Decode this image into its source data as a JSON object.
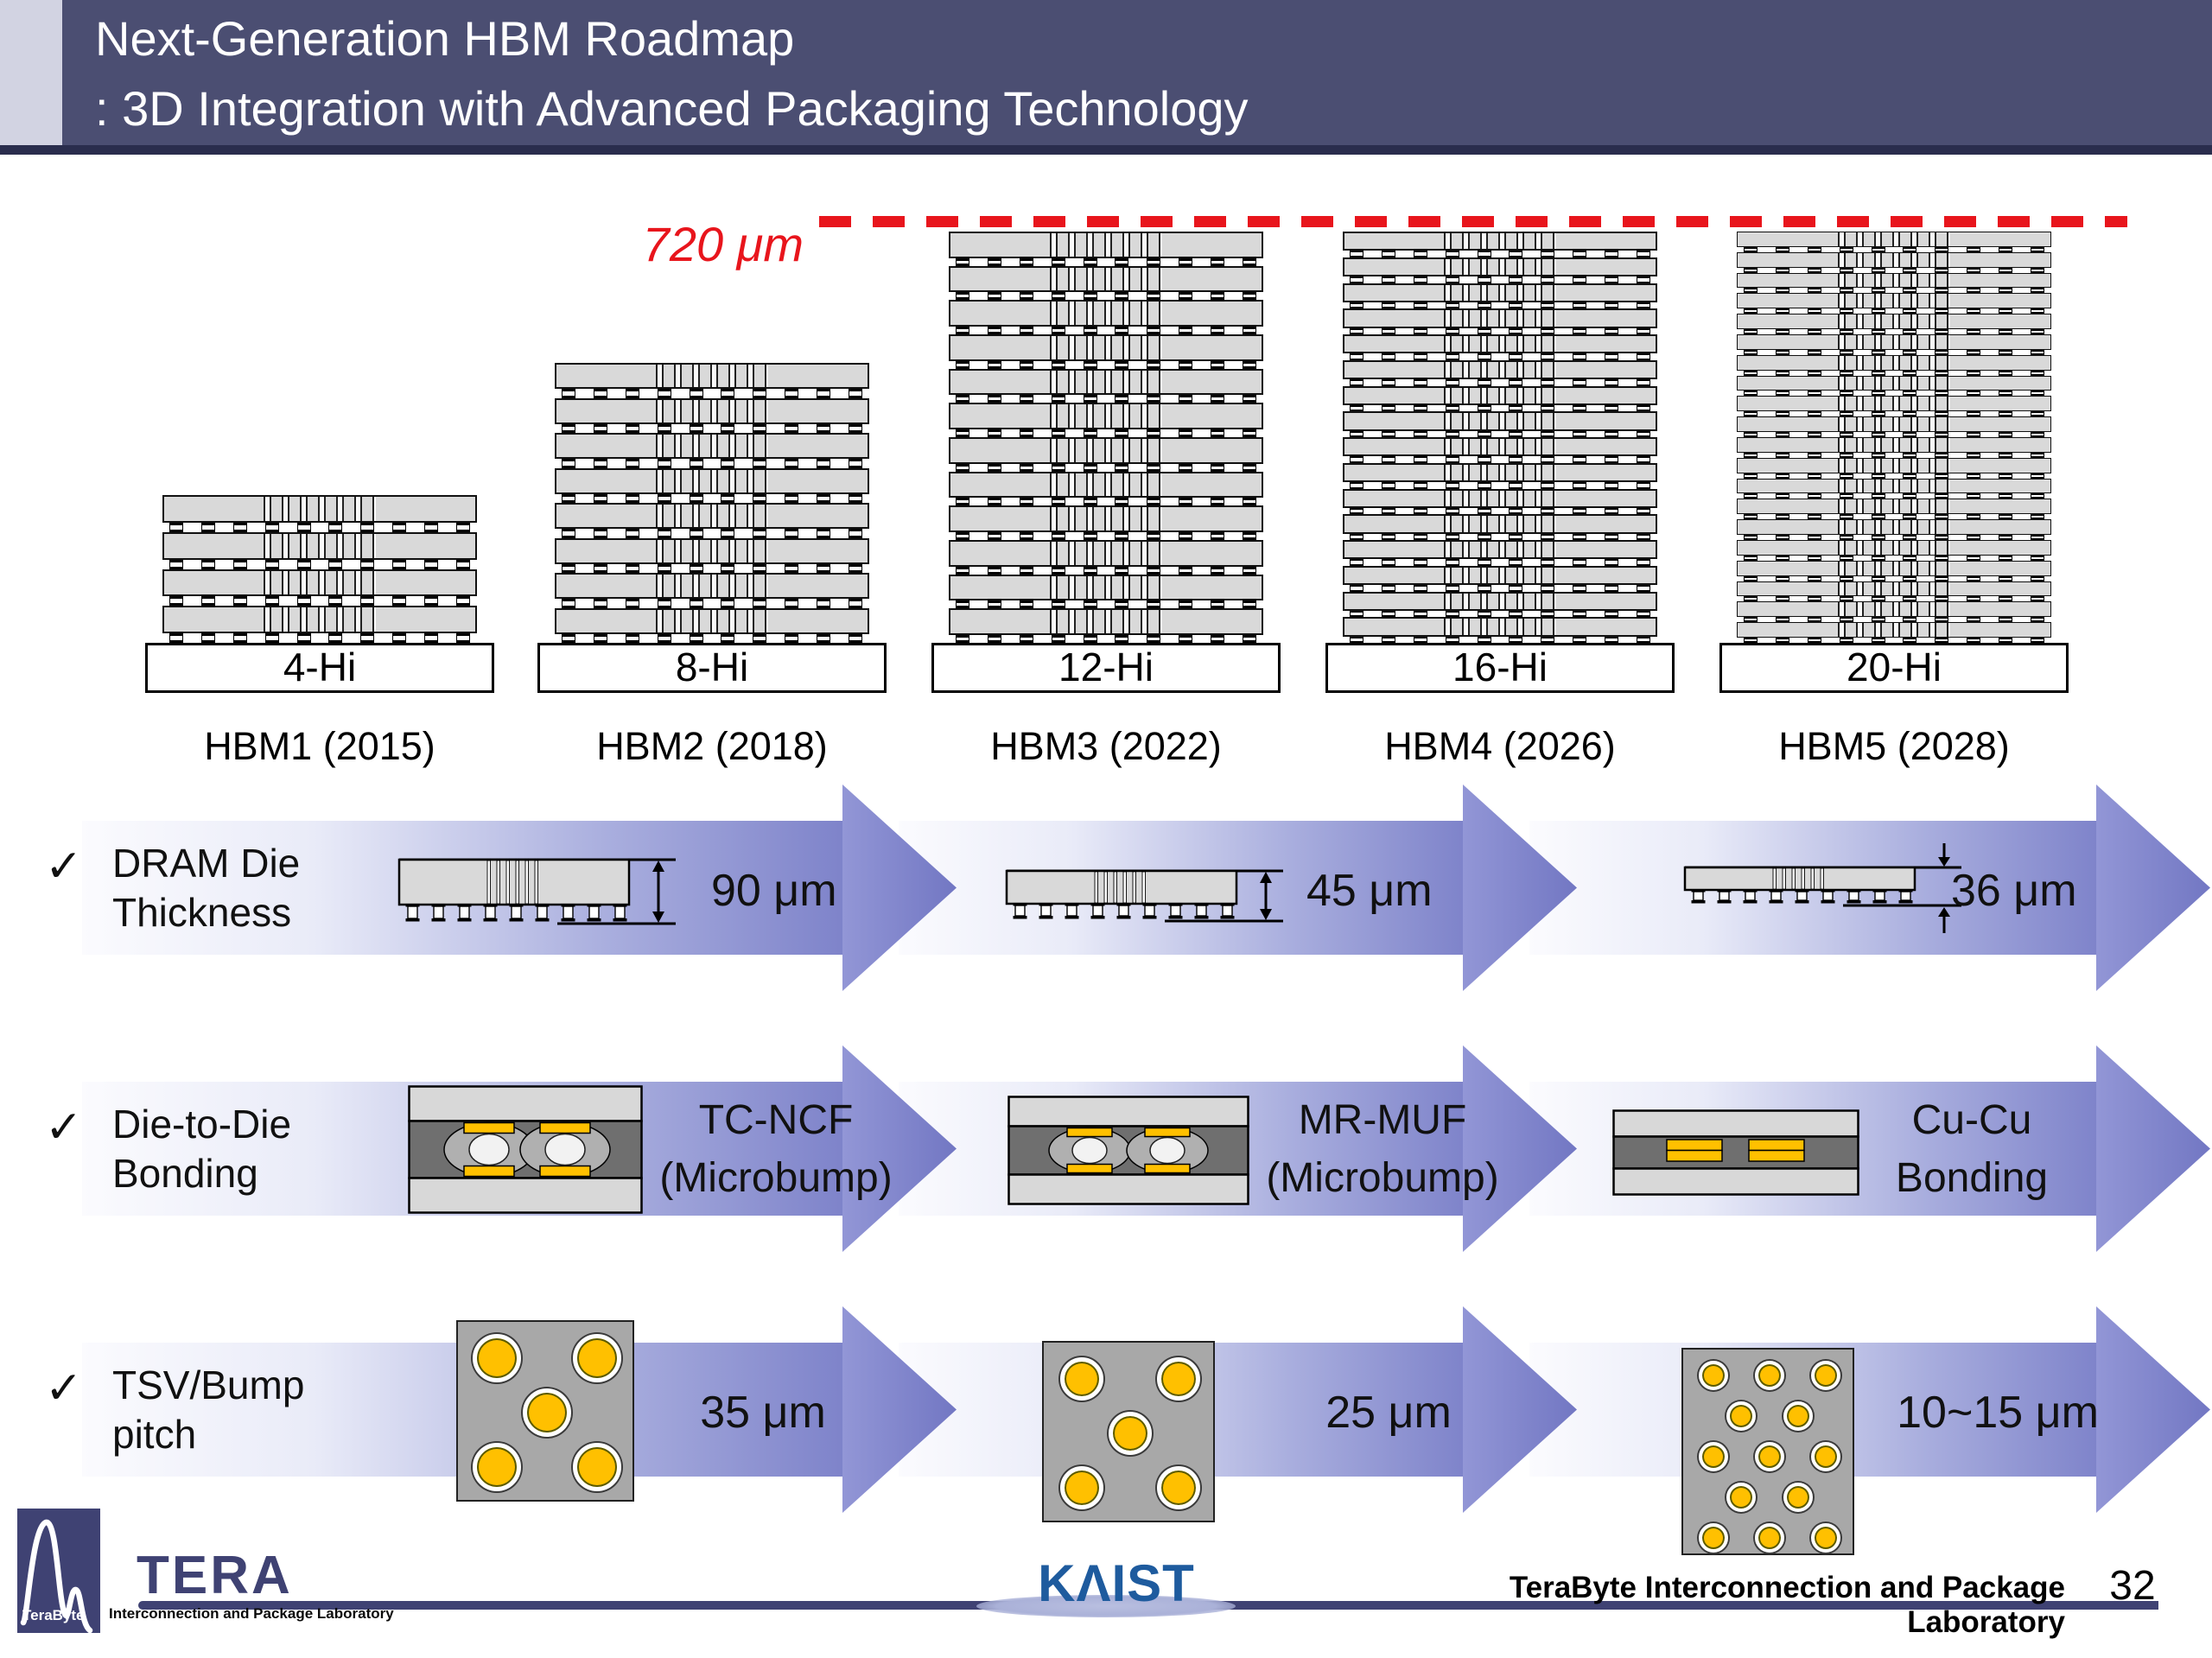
{
  "title": {
    "line1": "Next-Generation HBM Roadmap",
    "line2": ": 3D Integration with Advanced Packaging Technology"
  },
  "roadmap": {
    "height_limit_label": "720 μm",
    "stacks": [
      {
        "hi": "4-Hi",
        "gen": "HBM1 (2015)",
        "dies": 4
      },
      {
        "hi": "8-Hi",
        "gen": "HBM2 (2018)",
        "dies": 8
      },
      {
        "hi": "12-Hi",
        "gen": "HBM3 (2022)",
        "dies": 12
      },
      {
        "hi": "16-Hi",
        "gen": "HBM4 (2026)",
        "dies": 16
      },
      {
        "hi": "20-Hi",
        "gen": "HBM5 (2028)",
        "dies": 20
      }
    ]
  },
  "rows": [
    {
      "check": "✓",
      "label_lines": [
        "DRAM Die",
        "Thickness"
      ],
      "values": [
        "90 μm",
        "45 μm",
        "36 μm"
      ]
    },
    {
      "check": "✓",
      "label_lines": [
        "Die-to-Die",
        "Bonding"
      ],
      "values_lines": [
        [
          "TC-NCF",
          "(Microbump)"
        ],
        [
          "MR-MUF",
          "(Microbump)"
        ],
        [
          "Cu-Cu",
          "Bonding"
        ]
      ]
    },
    {
      "check": "✓",
      "label_lines": [
        "TSV/Bump",
        "pitch"
      ],
      "values": [
        "35 μm",
        "25 μm",
        "10~15 μm"
      ]
    }
  ],
  "footer": {
    "tera_byte": "TeraByte",
    "tera_name": "TERA",
    "tera_sub": "Interconnection and Package Laboratory",
    "kaist": "KAIST",
    "lab": "TeraByte Interconnection and Package Laboratory",
    "page": "32"
  },
  "colors": {
    "header_bar": "#4b4e72",
    "header_stripe": "#d2d3e2",
    "header_underline": "#2a2d4d",
    "arrow_purple": "#7c81c9",
    "limit_red": "#e8151c",
    "die_gray": "#d9d9d9",
    "mold_dark_gray": "#6f6f6f",
    "pad_gold": "#ffc000",
    "logo_navy": "#3f4273",
    "kaist_blue": "#1e5b9e"
  }
}
